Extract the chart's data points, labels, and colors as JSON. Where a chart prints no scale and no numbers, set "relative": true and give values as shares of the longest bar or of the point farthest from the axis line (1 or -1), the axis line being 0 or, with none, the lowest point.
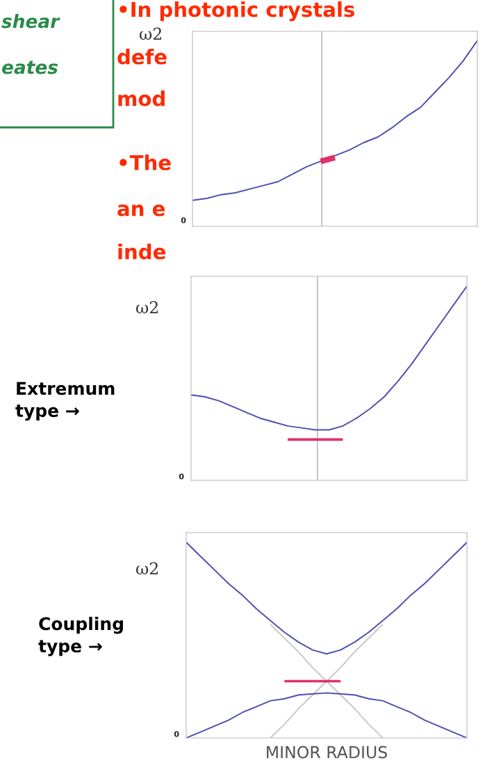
{
  "chart_data": [
    {
      "type": "line",
      "relative": true,
      "ylabel": "ω2",
      "line_style": "solid",
      "annotations": [
        "•In photonic crystals",
        "defe",
        "mod",
        "•The",
        "an e",
        "inde",
        "shear",
        "eates",
        "0"
      ],
      "categories": [
        null,
        null,
        null,
        null,
        null,
        null,
        null,
        null,
        null,
        null,
        null,
        null,
        null,
        null,
        null,
        null,
        null,
        null,
        null,
        null,
        null
      ],
      "series": [
        {
          "color": "#4d4db0",
          "values": [
            0.14,
            0.15,
            0.17,
            0.18,
            0.2,
            0.22,
            0.24,
            0.28,
            0.32,
            0.35,
            0.38,
            0.41,
            0.45,
            0.48,
            0.53,
            0.59,
            0.64,
            0.72,
            0.8,
            0.89,
            1.0
          ]
        },
        {
          "color": "#e0306a",
          "values": [
            null,
            null,
            null,
            null,
            null,
            null,
            null,
            null,
            null,
            0.35,
            0.37,
            null,
            null,
            null,
            null,
            null,
            null,
            null,
            null,
            null,
            null
          ]
        }
      ]
    },
    {
      "type": "line",
      "relative": true,
      "ylabel": "ω2",
      "line_style": "solid",
      "annotations": [
        "Extremum\ntype →",
        "0"
      ],
      "categories": [
        null,
        null,
        null,
        null,
        null,
        null,
        null,
        null,
        null,
        null,
        null,
        null,
        null,
        null,
        null,
        null,
        null,
        null,
        null,
        null,
        null
      ],
      "series": [
        {
          "color": "#4d4db0",
          "values": [
            0.44,
            0.43,
            0.41,
            0.38,
            0.35,
            0.32,
            0.3,
            0.28,
            0.27,
            0.26,
            0.26,
            0.28,
            0.32,
            0.37,
            0.43,
            0.51,
            0.6,
            0.7,
            0.8,
            0.9,
            1.0
          ]
        },
        {
          "color": "#e0306a",
          "values": [
            null,
            null,
            null,
            null,
            null,
            null,
            null,
            0.21,
            0.21,
            0.21,
            0.21,
            0.21,
            null,
            null,
            null,
            null,
            null,
            null,
            null,
            null,
            null
          ]
        }
      ]
    },
    {
      "type": "line",
      "relative": true,
      "ylabel": "ω2",
      "xlabel": "MINOR RADIUS",
      "line_style": "solid",
      "annotations": [
        "Coupling\ntype →",
        "0"
      ],
      "categories": [
        null,
        null,
        null,
        null,
        null,
        null,
        null,
        null,
        null,
        null,
        null,
        null,
        null,
        null,
        null,
        null,
        null,
        null,
        null,
        null,
        null
      ],
      "series": [
        {
          "color": "#c8c8c8",
          "values": [
            null,
            null,
            null,
            null,
            null,
            null,
            0.58,
            0.51,
            0.44,
            0.36,
            0.29,
            0.22,
            0.15,
            0.07,
            0.0,
            null,
            null,
            null,
            null,
            null,
            null
          ]
        },
        {
          "color": "#c8c8c8",
          "values": [
            null,
            null,
            null,
            null,
            null,
            null,
            0.0,
            0.07,
            0.15,
            0.22,
            0.29,
            0.36,
            0.44,
            0.51,
            0.58,
            null,
            null,
            null,
            null,
            null,
            null
          ]
        },
        {
          "color": "#4d4db0",
          "values": [
            1.0,
            0.93,
            0.86,
            0.79,
            0.73,
            0.66,
            0.6,
            0.54,
            0.49,
            0.45,
            0.43,
            0.45,
            0.49,
            0.54,
            0.6,
            0.66,
            0.73,
            0.79,
            0.86,
            0.93,
            1.0
          ]
        },
        {
          "color": "#4d4db0",
          "values": [
            0.0,
            0.03,
            0.06,
            0.09,
            0.13,
            0.16,
            0.19,
            0.2,
            0.22,
            0.225,
            0.23,
            0.225,
            0.22,
            0.2,
            0.19,
            0.16,
            0.13,
            0.09,
            0.06,
            0.03,
            0.0
          ]
        },
        {
          "color": "#e0306a",
          "values": [
            null,
            null,
            null,
            null,
            null,
            null,
            null,
            0.29,
            0.29,
            0.29,
            0.29,
            0.29,
            null,
            null,
            null,
            null,
            null,
            null,
            null,
            null,
            null
          ]
        }
      ]
    }
  ]
}
